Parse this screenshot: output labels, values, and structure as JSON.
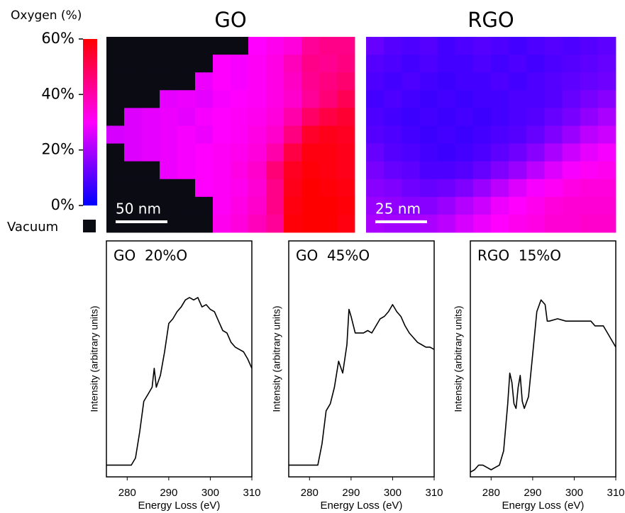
{
  "chart_data": [
    {
      "type": "heatmap",
      "title": "GO",
      "scale_bar": "50 nm",
      "colorbar_title": "Oxygen (%)",
      "null_label": "Vacuum",
      "null_color": "#0b0b14",
      "colors": [
        "#0000ff",
        "#ff00ff",
        "#ff0000"
      ],
      "zlim": [
        0,
        60
      ],
      "zticks": [
        {
          "value": 0,
          "label": "0%"
        },
        {
          "value": 20,
          "label": "20%"
        },
        {
          "value": 40,
          "label": "40%"
        },
        {
          "value": 60,
          "label": "60%"
        }
      ],
      "values": [
        [
          null,
          null,
          null,
          null,
          null,
          null,
          null,
          null,
          30,
          32,
          34,
          42,
          44,
          44
        ],
        [
          null,
          null,
          null,
          null,
          null,
          null,
          30,
          29,
          31,
          33,
          38,
          44,
          43,
          45
        ],
        [
          null,
          null,
          null,
          null,
          null,
          28,
          30,
          29,
          31,
          33,
          37,
          43,
          45,
          47
        ],
        [
          null,
          null,
          null,
          27,
          28,
          27,
          29,
          30,
          31,
          33,
          36,
          42,
          46,
          50
        ],
        [
          null,
          26,
          27,
          28,
          27,
          29,
          30,
          31,
          32,
          34,
          40,
          48,
          52,
          54
        ],
        [
          25,
          26,
          27,
          28,
          29,
          28,
          30,
          31,
          33,
          36,
          45,
          55,
          57,
          56
        ],
        [
          null,
          26,
          27,
          28,
          29,
          30,
          31,
          32,
          34,
          40,
          52,
          58,
          58,
          57
        ],
        [
          null,
          null,
          null,
          28,
          29,
          30,
          31,
          33,
          36,
          46,
          56,
          59,
          58,
          57
        ],
        [
          null,
          null,
          null,
          null,
          null,
          30,
          31,
          32,
          35,
          44,
          57,
          60,
          59,
          58
        ],
        [
          null,
          null,
          null,
          null,
          null,
          null,
          31,
          33,
          36,
          44,
          58,
          60,
          60,
          59
        ],
        [
          null,
          null,
          null,
          null,
          null,
          null,
          32,
          34,
          38,
          42,
          59,
          60,
          60,
          58
        ]
      ]
    },
    {
      "type": "heatmap",
      "title": "RGO",
      "scale_bar": "25 nm",
      "values": [
        [
          12,
          10,
          9,
          10,
          8,
          9,
          10,
          9,
          8,
          9,
          10,
          9,
          10,
          11
        ],
        [
          10,
          9,
          8,
          9,
          8,
          8,
          9,
          8,
          9,
          8,
          9,
          10,
          11,
          12
        ],
        [
          9,
          8,
          9,
          8,
          7,
          8,
          8,
          9,
          8,
          9,
          10,
          11,
          12,
          13
        ],
        [
          8,
          9,
          8,
          7,
          8,
          7,
          8,
          8,
          9,
          9,
          10,
          12,
          14,
          16
        ],
        [
          9,
          8,
          7,
          8,
          7,
          8,
          7,
          8,
          9,
          10,
          12,
          14,
          17,
          20
        ],
        [
          10,
          9,
          8,
          7,
          8,
          7,
          8,
          9,
          10,
          12,
          15,
          18,
          22,
          24
        ],
        [
          12,
          10,
          9,
          8,
          7,
          8,
          9,
          11,
          13,
          16,
          20,
          24,
          27,
          29
        ],
        [
          14,
          12,
          11,
          9,
          9,
          10,
          12,
          15,
          18,
          22,
          26,
          29,
          31,
          32
        ],
        [
          16,
          15,
          13,
          12,
          13,
          15,
          18,
          22,
          26,
          29,
          31,
          33,
          34,
          34
        ],
        [
          18,
          17,
          16,
          16,
          18,
          21,
          24,
          28,
          30,
          32,
          34,
          35,
          35,
          35
        ],
        [
          20,
          19,
          19,
          20,
          22,
          25,
          28,
          30,
          32,
          33,
          35,
          35,
          36,
          36
        ]
      ]
    },
    {
      "type": "line",
      "title": "GO  20%O",
      "xlabel": "Energy Loss (eV)",
      "ylabel": "Intensity (arbitrary units)",
      "color": "#000000",
      "xlim": [
        275,
        310
      ],
      "xticks": [
        280,
        290,
        300,
        310
      ],
      "ylim": [
        0,
        1
      ],
      "x": [
        275,
        277,
        279,
        281,
        282,
        283,
        284,
        285,
        286,
        286.5,
        287,
        288,
        289,
        290,
        291,
        292,
        293,
        294,
        295,
        296,
        297,
        298,
        299,
        300,
        301,
        302,
        303,
        304,
        305,
        306,
        307,
        308,
        309,
        310
      ],
      "values": [
        0.05,
        0.05,
        0.05,
        0.05,
        0.08,
        0.19,
        0.32,
        0.35,
        0.38,
        0.46,
        0.38,
        0.43,
        0.53,
        0.65,
        0.67,
        0.7,
        0.72,
        0.75,
        0.76,
        0.75,
        0.76,
        0.72,
        0.73,
        0.71,
        0.7,
        0.66,
        0.62,
        0.61,
        0.57,
        0.55,
        0.54,
        0.53,
        0.5,
        0.46
      ]
    },
    {
      "type": "line",
      "title": "GO  45%O",
      "xlabel": "Energy Loss (eV)",
      "ylabel": "Intensity (arbitrary units)",
      "color": "#000000",
      "xlim": [
        275,
        310
      ],
      "xticks": [
        280,
        290,
        300,
        310
      ],
      "ylim": [
        0,
        1
      ],
      "x": [
        275,
        277,
        279,
        281,
        282,
        283,
        284,
        285,
        286,
        287,
        288,
        289,
        289.5,
        290,
        291,
        292,
        293,
        294,
        295,
        296,
        297,
        298,
        299,
        300,
        301,
        302,
        303,
        304,
        305,
        306,
        307,
        308,
        309,
        310
      ],
      "values": [
        0.05,
        0.05,
        0.05,
        0.05,
        0.05,
        0.14,
        0.28,
        0.31,
        0.38,
        0.49,
        0.44,
        0.56,
        0.71,
        0.68,
        0.61,
        0.61,
        0.61,
        0.62,
        0.61,
        0.64,
        0.67,
        0.68,
        0.7,
        0.73,
        0.7,
        0.68,
        0.64,
        0.61,
        0.59,
        0.57,
        0.56,
        0.55,
        0.55,
        0.54
      ]
    },
    {
      "type": "line",
      "title": "RGO  15%O",
      "xlabel": "Energy Loss (eV)",
      "ylabel": "Intensity (arbitrary units)",
      "color": "#000000",
      "xlim": [
        275,
        310
      ],
      "xticks": [
        280,
        290,
        300,
        310
      ],
      "ylim": [
        0,
        1
      ],
      "x": [
        275,
        276,
        277,
        278,
        279,
        280,
        281,
        282,
        283,
        284,
        284.5,
        285,
        285.5,
        286,
        286.5,
        287,
        287.5,
        288,
        289,
        290,
        291,
        292,
        293,
        293.5,
        294,
        296,
        298,
        300,
        302,
        304,
        305,
        307,
        308,
        309,
        310
      ],
      "values": [
        0.02,
        0.03,
        0.05,
        0.05,
        0.04,
        0.03,
        0.04,
        0.05,
        0.11,
        0.31,
        0.44,
        0.4,
        0.31,
        0.29,
        0.38,
        0.43,
        0.32,
        0.29,
        0.34,
        0.52,
        0.7,
        0.75,
        0.73,
        0.66,
        0.66,
        0.67,
        0.66,
        0.66,
        0.66,
        0.66,
        0.64,
        0.64,
        0.61,
        0.58,
        0.55
      ]
    }
  ]
}
